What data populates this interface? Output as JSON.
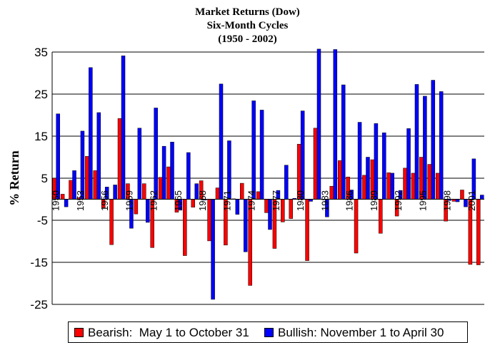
{
  "chart_data": {
    "type": "bar",
    "title_lines": [
      "Market Returns (Dow)",
      "Six-Month Cycles",
      "(1950 - 2002)"
    ],
    "ylabel": "% Return",
    "xlabel": "",
    "ylim": [
      -25,
      35
    ],
    "yticks": [
      35,
      25,
      15,
      5,
      -5,
      -15,
      -25
    ],
    "grid": true,
    "legend_position": "bottom",
    "colors": {
      "bearish": "#ff0000",
      "bullish": "#0000ff",
      "grid": "#000000"
    },
    "x": [
      1950,
      1951,
      1952,
      1953,
      1954,
      1955,
      1956,
      1957,
      1958,
      1959,
      1960,
      1961,
      1962,
      1963,
      1964,
      1965,
      1966,
      1967,
      1968,
      1969,
      1970,
      1971,
      1972,
      1973,
      1974,
      1975,
      1976,
      1977,
      1978,
      1979,
      1980,
      1981,
      1982,
      1983,
      1984,
      1985,
      1986,
      1987,
      1988,
      1989,
      1990,
      1991,
      1992,
      1993,
      1994,
      1995,
      1996,
      1997,
      1998,
      1999,
      2000,
      2001,
      2002
    ],
    "tick_labels": [
      {
        "x": 1950,
        "label": "1950"
      },
      {
        "x": 1953,
        "label": "1953"
      },
      {
        "x": 1956,
        "label": "1956"
      },
      {
        "x": 1959,
        "label": "1959"
      },
      {
        "x": 1962,
        "label": "1962"
      },
      {
        "x": 1965,
        "label": "1965"
      },
      {
        "x": 1968,
        "label": "1968"
      },
      {
        "x": 1971,
        "label": "1971"
      },
      {
        "x": 1974,
        "label": "1974"
      },
      {
        "x": 1977,
        "label": "1977"
      },
      {
        "x": 1980,
        "label": "1980"
      },
      {
        "x": 1983,
        "label": "1983"
      },
      {
        "x": 1986,
        "label": "1986"
      },
      {
        "x": 1989,
        "label": "1989"
      },
      {
        "x": 1992,
        "label": "1992"
      },
      {
        "x": 1995,
        "label": "1995"
      },
      {
        "x": 1998,
        "label": "1998"
      },
      {
        "x": 2001,
        "label": "2001"
      }
    ],
    "series": [
      {
        "name": "Bearish:  May 1 to October 31",
        "key": "bearish",
        "values": [
          5.0,
          1.2,
          4.5,
          0.4,
          10.2,
          6.8,
          -2.0,
          -10.8,
          19.2,
          3.7,
          -3.5,
          3.7,
          -11.5,
          5.2,
          7.7,
          -3.1,
          -13.4,
          -1.9,
          4.4,
          -9.9,
          2.7,
          -10.9,
          0.1,
          3.8,
          -20.5,
          1.8,
          -3.2,
          -11.7,
          -5.4,
          -4.6,
          13.1,
          -14.6,
          16.9,
          -0.1,
          3.1,
          9.2,
          5.3,
          -12.8,
          5.7,
          9.4,
          -8.1,
          6.3,
          -4.0,
          7.4,
          6.2,
          10.0,
          8.3,
          6.2,
          -5.2,
          -0.5,
          2.2,
          -15.5,
          -15.6
        ]
      },
      {
        "name": "Bullish: November 1 to April 30",
        "key": "bullish",
        "values": [
          20.3,
          -1.8,
          6.8,
          16.2,
          31.3,
          20.6,
          2.9,
          3.4,
          34.1,
          -6.9,
          16.9,
          -5.5,
          21.7,
          12.6,
          13.6,
          -2.6,
          11.1,
          3.7,
          -0.2,
          -23.8,
          27.4,
          13.9,
          -3.6,
          -12.5,
          23.4,
          21.2,
          -7.2,
          2.1,
          8.1,
          0.2,
          21.0,
          -0.5,
          35.7,
          -4.2,
          35.6,
          27.2,
          2.2,
          18.3,
          10.0,
          18.0,
          15.8,
          6.2,
          2.1,
          16.8,
          27.3,
          24.5,
          28.3,
          25.6,
          -0.3,
          -0.6,
          -1.8,
          9.6,
          1.0
        ]
      }
    ]
  }
}
